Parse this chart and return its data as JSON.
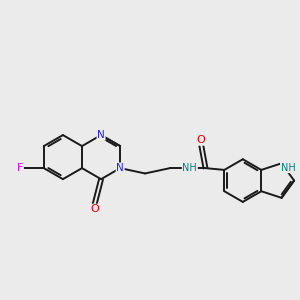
{
  "bg": "#ebebeb",
  "bond_color": "#1a1a1a",
  "bond_lw": 1.4,
  "atom_colors": {
    "N": "#2020ff",
    "O": "#dd0000",
    "F": "#dd00dd",
    "NH": "#008080",
    "C": "#1a1a1a"
  },
  "font_size": 7.5,
  "dbo": 0.055
}
